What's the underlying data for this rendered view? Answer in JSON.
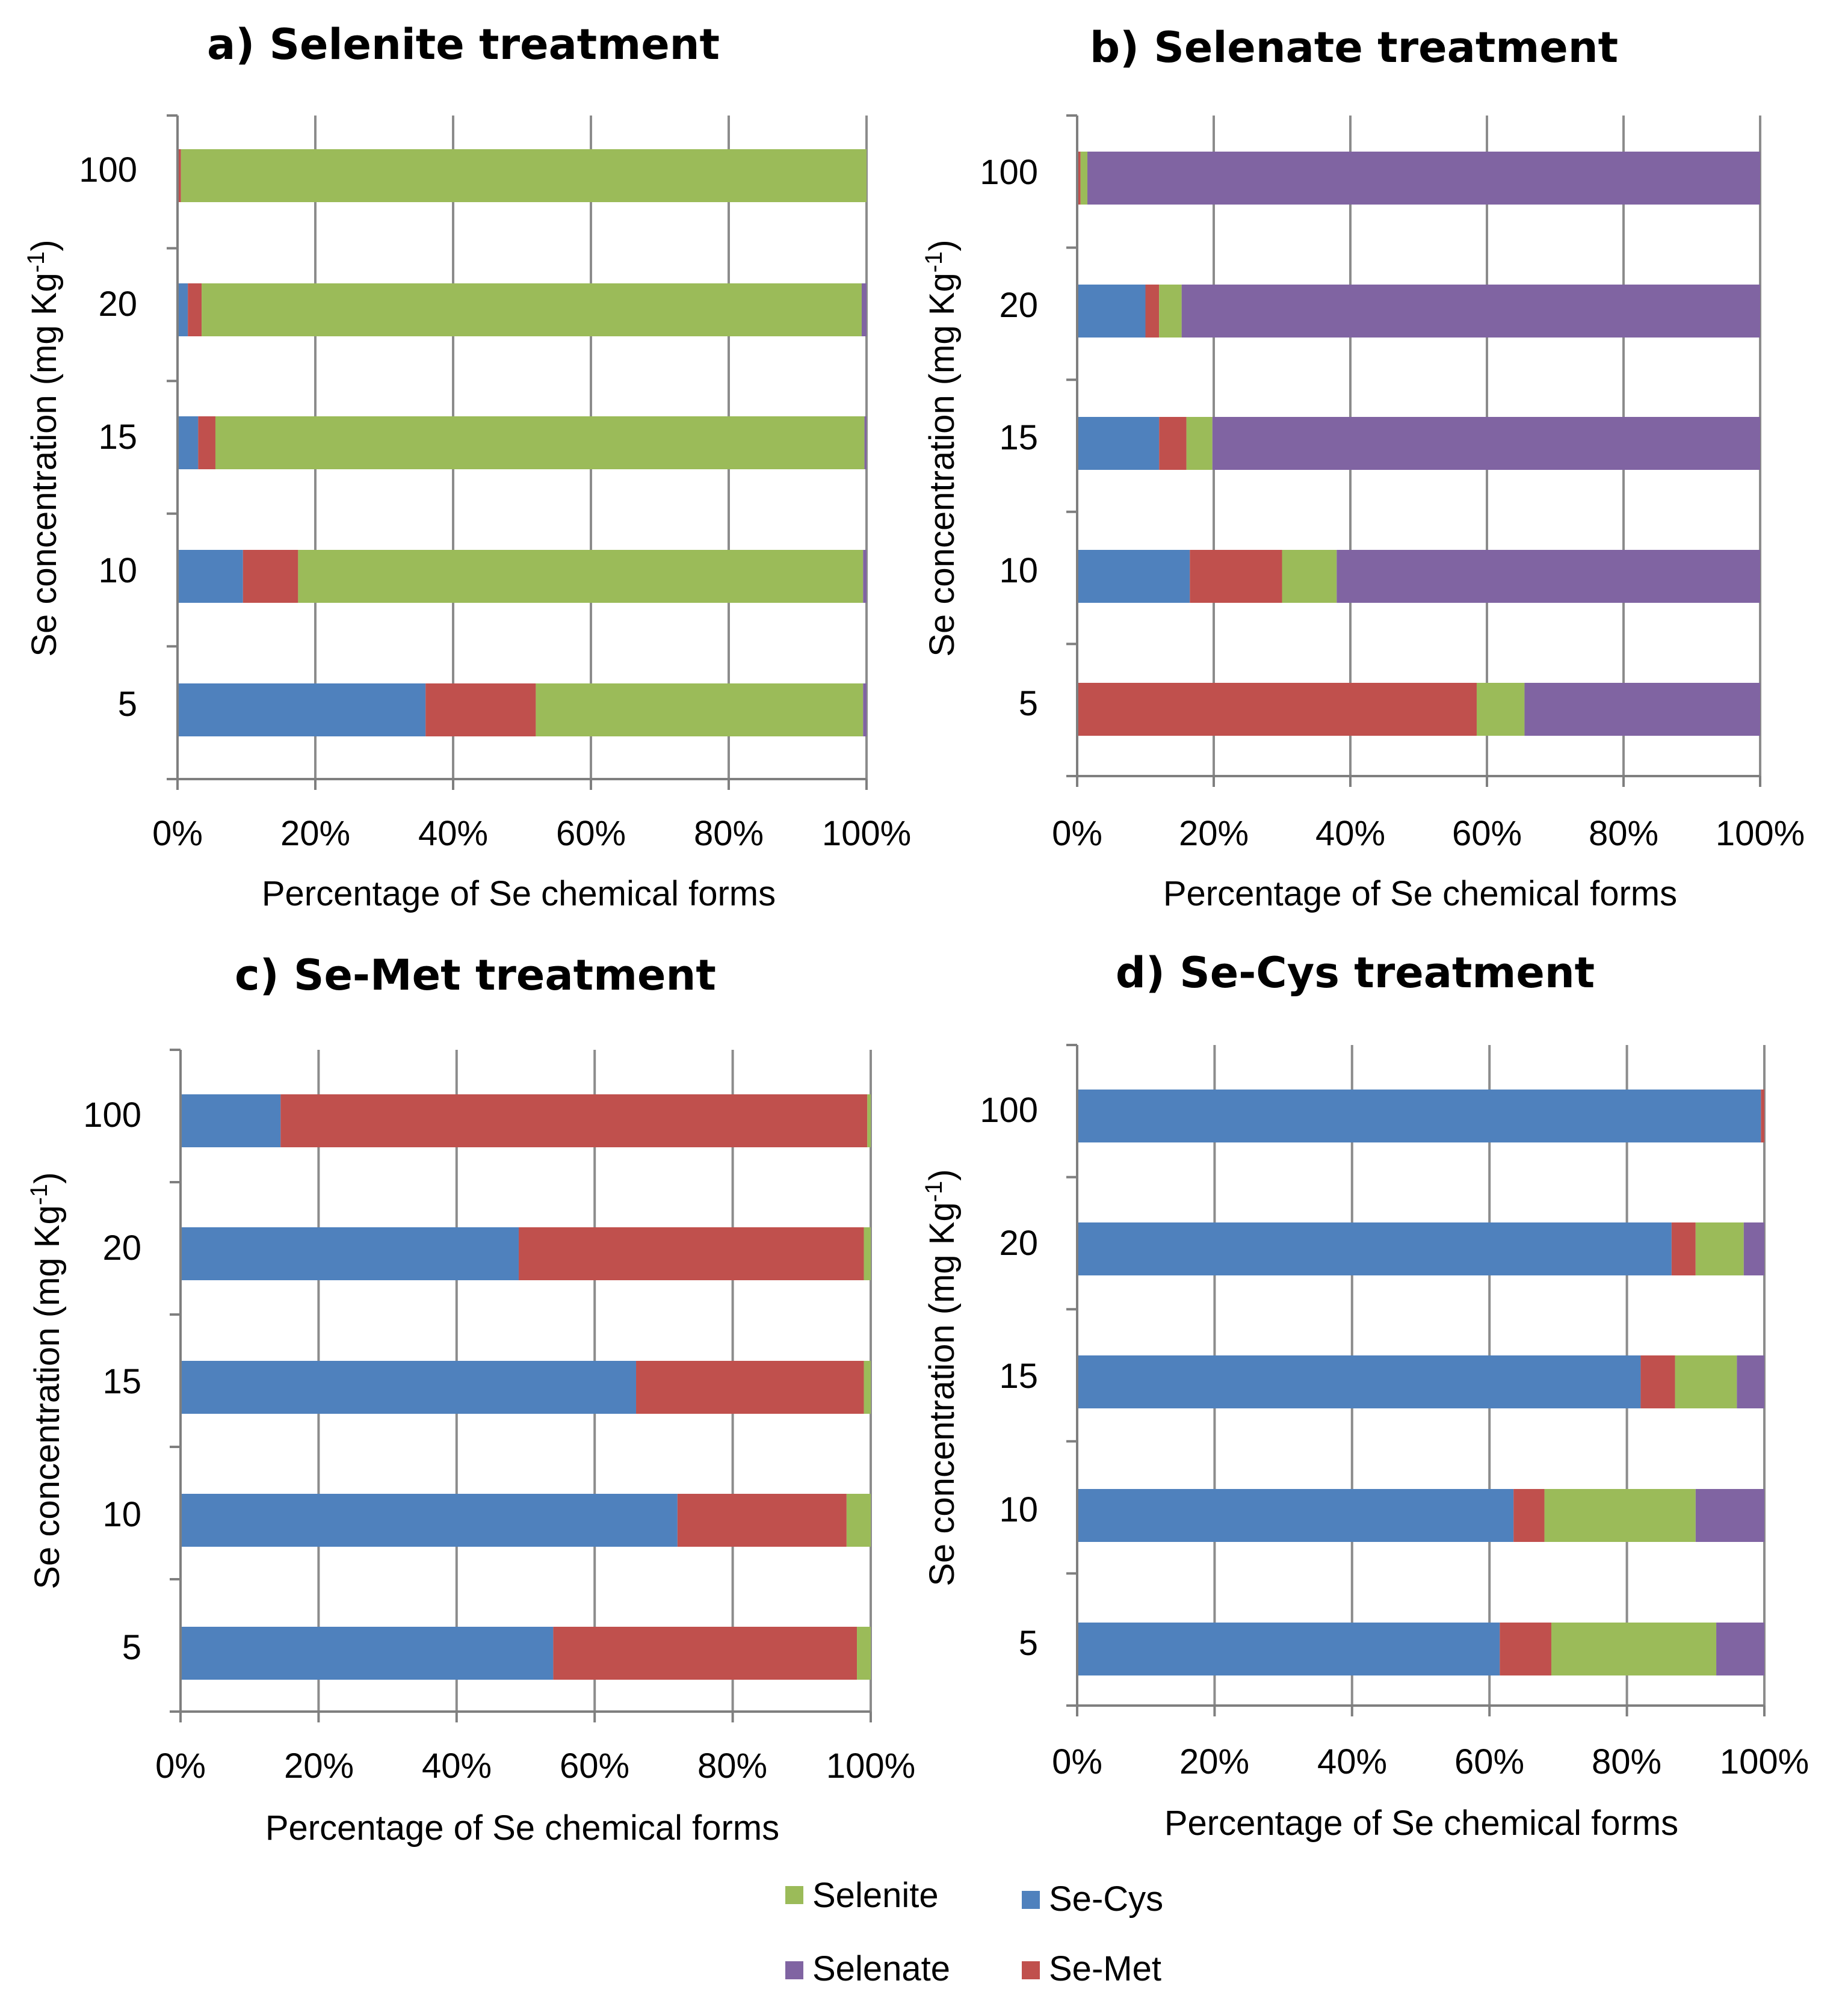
{
  "colors": {
    "Se-Cys": "#4f81bd",
    "Se-Met": "#c0504d",
    "Selenite": "#9bbb59",
    "Selenate": "#8064a2",
    "grid": "#8c8c8c",
    "axis": "#7f7f7f"
  },
  "legend": {
    "items": [
      {
        "name": "Selenite",
        "label": "Selenite"
      },
      {
        "name": "Se-Cys",
        "label": "Se-Cys"
      },
      {
        "name": "Selenate",
        "label": "Selenate"
      },
      {
        "name": "Se-Met",
        "label": "Se-Met"
      }
    ]
  },
  "chart_data": [
    {
      "type": "bar",
      "stacked": "percent",
      "orientation": "horizontal",
      "title": "a) Selenite treatment",
      "xlabel": "Percentage of Se chemical forms",
      "ylabel_main": "Se concentration (mg Kg",
      "ylabel_sup": "-1",
      "ylabel_close": ")",
      "xlim": [
        0,
        100
      ],
      "xticks": [
        "0%",
        "20%",
        "40%",
        "60%",
        "80%",
        "100%"
      ],
      "categories": [
        "100",
        "20",
        "15",
        "10",
        "5"
      ],
      "series": [
        {
          "name": "Se-Cys",
          "values": [
            0,
            1.5,
            3,
            9.5,
            36
          ]
        },
        {
          "name": "Se-Met",
          "values": [
            0.5,
            2,
            2.5,
            8,
            16
          ]
        },
        {
          "name": "Selenite",
          "values": [
            99.5,
            95.8,
            94.2,
            82,
            47.5
          ]
        },
        {
          "name": "Selenate",
          "values": [
            0,
            0.7,
            0.3,
            0.5,
            0.5
          ]
        }
      ]
    },
    {
      "type": "bar",
      "stacked": "percent",
      "orientation": "horizontal",
      "title": "b) Selenate treatment",
      "xlabel": "Percentage of Se chemical forms",
      "ylabel_main": "Se concentration (mg Kg",
      "ylabel_sup": "-1",
      "ylabel_close": ")",
      "xlim": [
        0,
        100
      ],
      "xticks": [
        "0%",
        "20%",
        "40%",
        "60%",
        "80%",
        "100%"
      ],
      "categories": [
        "100",
        "20",
        "15",
        "10",
        "5"
      ],
      "series": [
        {
          "name": "Se-Cys",
          "values": [
            0,
            10,
            12,
            16.5,
            0
          ]
        },
        {
          "name": "Se-Met",
          "values": [
            0.5,
            2,
            4,
            13.5,
            58.5
          ]
        },
        {
          "name": "Selenite",
          "values": [
            1,
            3.3,
            3.8,
            8,
            7
          ]
        },
        {
          "name": "Selenate",
          "values": [
            98.5,
            84.7,
            80.2,
            62,
            34.5
          ]
        }
      ]
    },
    {
      "type": "bar",
      "stacked": "percent",
      "orientation": "horizontal",
      "title": "c) Se-Met treatment",
      "xlabel": "Percentage of Se chemical forms",
      "ylabel_main": "Se concentration (mg Kg",
      "ylabel_sup": "-1",
      "ylabel_close": ")",
      "xlim": [
        0,
        100
      ],
      "xticks": [
        "0%",
        "20%",
        "40%",
        "60%",
        "80%",
        "100%"
      ],
      "categories": [
        "100",
        "20",
        "15",
        "10",
        "5"
      ],
      "series": [
        {
          "name": "Se-Cys",
          "values": [
            14.5,
            49,
            66,
            72,
            54
          ]
        },
        {
          "name": "Se-Met",
          "values": [
            85,
            50,
            33,
            24.5,
            44
          ]
        },
        {
          "name": "Selenite",
          "values": [
            0.5,
            1,
            1,
            3.5,
            2
          ]
        },
        {
          "name": "Selenate",
          "values": [
            0,
            0,
            0,
            0,
            0
          ]
        }
      ]
    },
    {
      "type": "bar",
      "stacked": "percent",
      "orientation": "horizontal",
      "title": "d) Se-Cys treatment",
      "xlabel": "Percentage of Se chemical forms",
      "ylabel_main": "Se concentration (mg Kg",
      "ylabel_sup": "-1",
      "ylabel_close": ")",
      "xlim": [
        0,
        100
      ],
      "xticks": [
        "0%",
        "20%",
        "40%",
        "60%",
        "80%",
        "100%"
      ],
      "categories": [
        "100",
        "20",
        "15",
        "10",
        "5"
      ],
      "series": [
        {
          "name": "Se-Cys",
          "values": [
            99.5,
            86.5,
            82,
            63.5,
            61.5
          ]
        },
        {
          "name": "Se-Met",
          "values": [
            0.5,
            3.5,
            5,
            4.5,
            7.5
          ]
        },
        {
          "name": "Selenite",
          "values": [
            0,
            7,
            9,
            22,
            24
          ]
        },
        {
          "name": "Selenate",
          "values": [
            0,
            3,
            4,
            10,
            7
          ]
        }
      ]
    }
  ]
}
